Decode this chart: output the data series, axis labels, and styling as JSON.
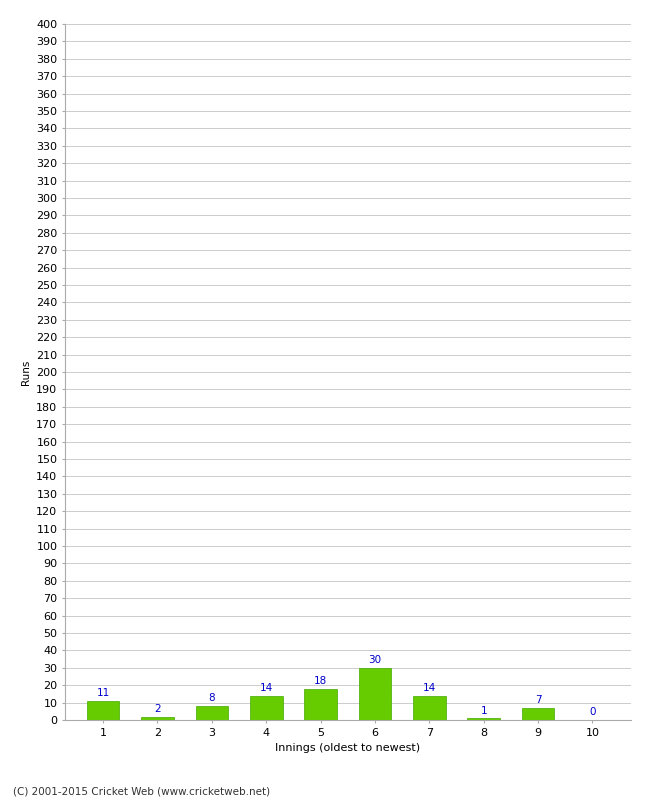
{
  "categories": [
    "1",
    "2",
    "3",
    "4",
    "5",
    "6",
    "7",
    "8",
    "9",
    "10"
  ],
  "values": [
    11,
    2,
    8,
    14,
    18,
    30,
    14,
    1,
    7,
    0
  ],
  "bar_color": "#66cc00",
  "bar_edge_color": "#44aa00",
  "label_color": "#0000cc",
  "xlabel": "Innings (oldest to newest)",
  "ylabel": "Runs",
  "ylim": [
    0,
    400
  ],
  "ytick_major_step": 10,
  "background_color": "#ffffff",
  "grid_color": "#cccccc",
  "footer": "(C) 2001-2015 Cricket Web (www.cricketweb.net)",
  "label_fontsize": 7.5,
  "axis_fontsize": 8,
  "footer_fontsize": 7.5,
  "ylabel_fontsize": 7.5
}
